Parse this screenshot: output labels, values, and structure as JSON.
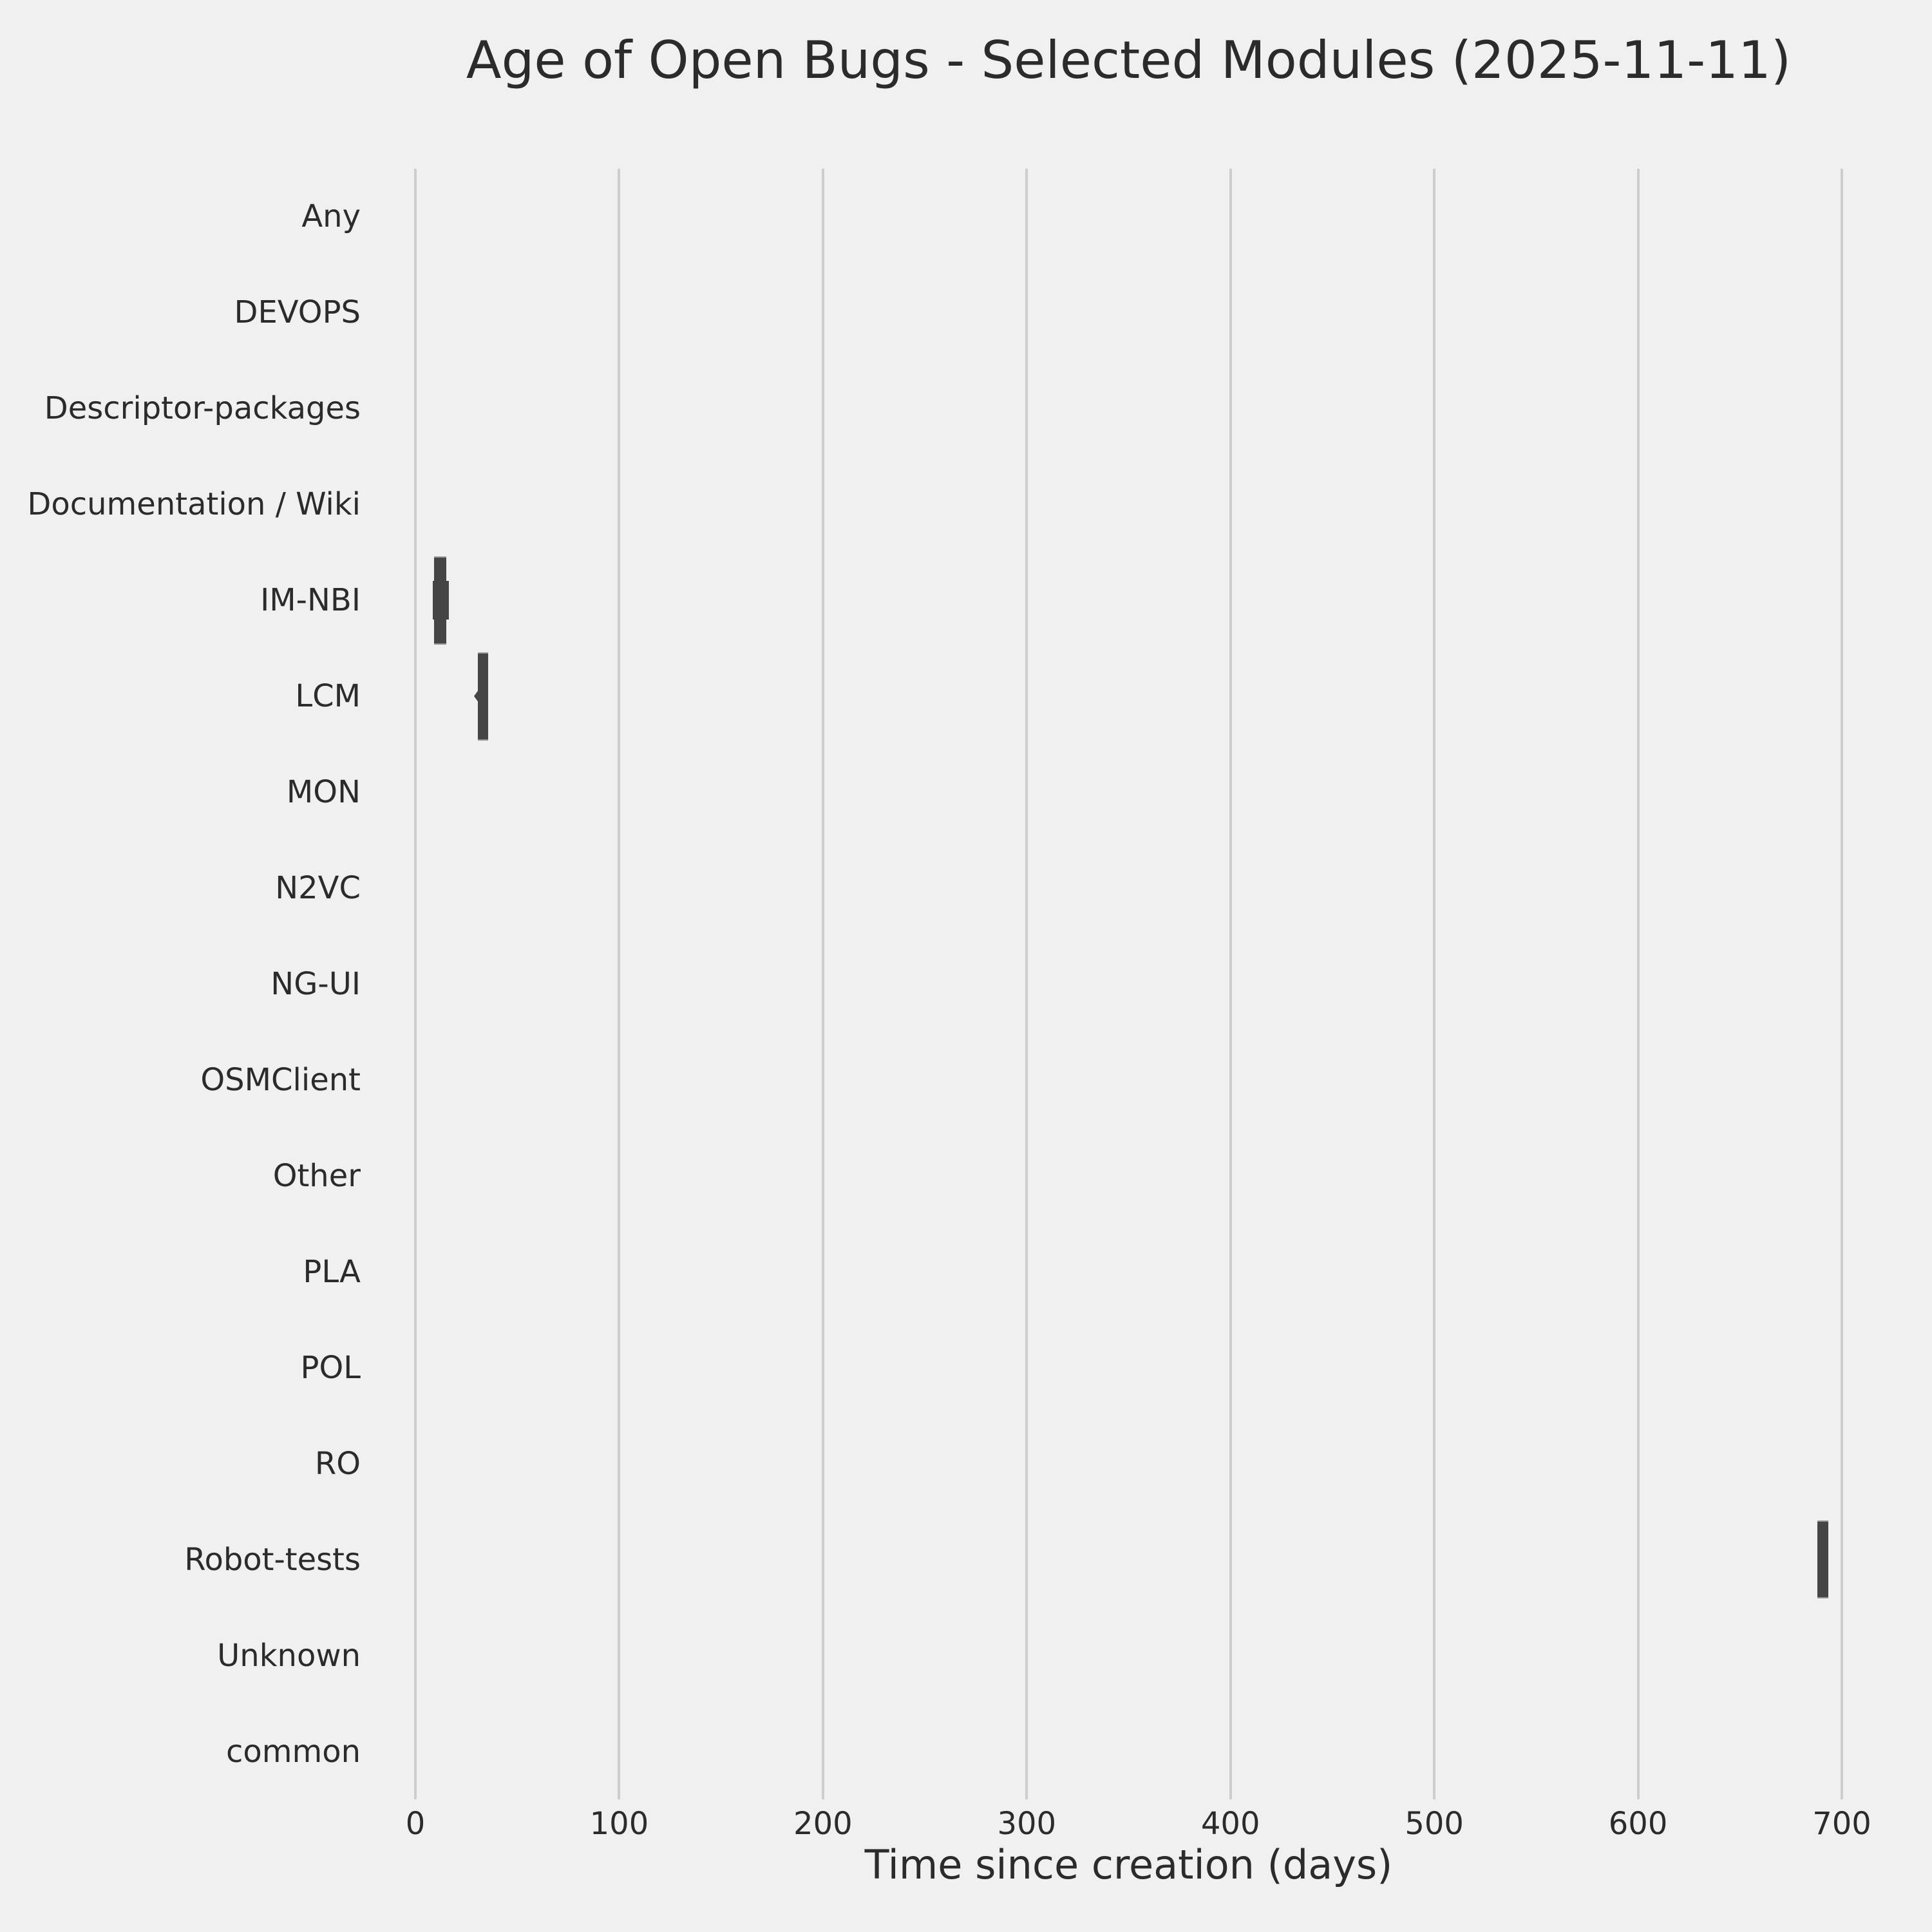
{
  "chart": {
    "title": "Age of Open Bugs - Selected Modules (2025-11-11)",
    "xlabel": "Time since creation (days)"
  },
  "colors": {
    "background": "#f0f0f0",
    "grid": "#cdcdcd",
    "mark": "#454545",
    "mark_edge": "#949494",
    "text": "#2b2b2b"
  },
  "chart_data": {
    "type": "violin",
    "orientation": "horizontal",
    "title": "Age of Open Bugs - Selected Modules (2025-11-11)",
    "xlabel": "Time since creation (days)",
    "ylabel": "",
    "xlim": [
      0,
      700
    ],
    "x_ticks": [
      0,
      100,
      200,
      300,
      400,
      500,
      600,
      700
    ],
    "grid": true,
    "legend": null,
    "categories": [
      "Any",
      "DEVOPS",
      "Descriptor-packages",
      "Documentation / Wiki",
      "IM-NBI",
      "LCM",
      "MON",
      "N2VC",
      "NG-UI",
      "OSMClient",
      "Other",
      "PLA",
      "POL",
      "RO",
      "Robot-tests",
      "Unknown",
      "common"
    ],
    "marks": [
      {
        "category": "Any",
        "violin": null
      },
      {
        "category": "DEVOPS",
        "violin": null
      },
      {
        "category": "Descriptor-packages",
        "violin": null
      },
      {
        "category": "Documentation / Wiki",
        "violin": null
      },
      {
        "category": "IM-NBI",
        "violin": {
          "span_days": [
            9.2,
            15.2
          ],
          "bulge_days": [
            8.5,
            16.4
          ],
          "width_frac": 0.92,
          "bulge_frac": 0.4
        }
      },
      {
        "category": "LCM",
        "violin": {
          "span_days": [
            30.7,
            35.7
          ],
          "notch_day": 28.8,
          "width_frac": 0.92
        }
      },
      {
        "category": "MON",
        "violin": null
      },
      {
        "category": "N2VC",
        "violin": null
      },
      {
        "category": "NG-UI",
        "violin": null
      },
      {
        "category": "OSMClient",
        "violin": null
      },
      {
        "category": "Other",
        "violin": null
      },
      {
        "category": "PLA",
        "violin": null
      },
      {
        "category": "POL",
        "violin": null
      },
      {
        "category": "RO",
        "violin": null
      },
      {
        "category": "Robot-tests",
        "violin": {
          "span_days": [
            688.0,
            693.5
          ],
          "width_frac": 0.81
        }
      },
      {
        "category": "Unknown",
        "violin": null
      },
      {
        "category": "common",
        "violin": null
      }
    ]
  }
}
